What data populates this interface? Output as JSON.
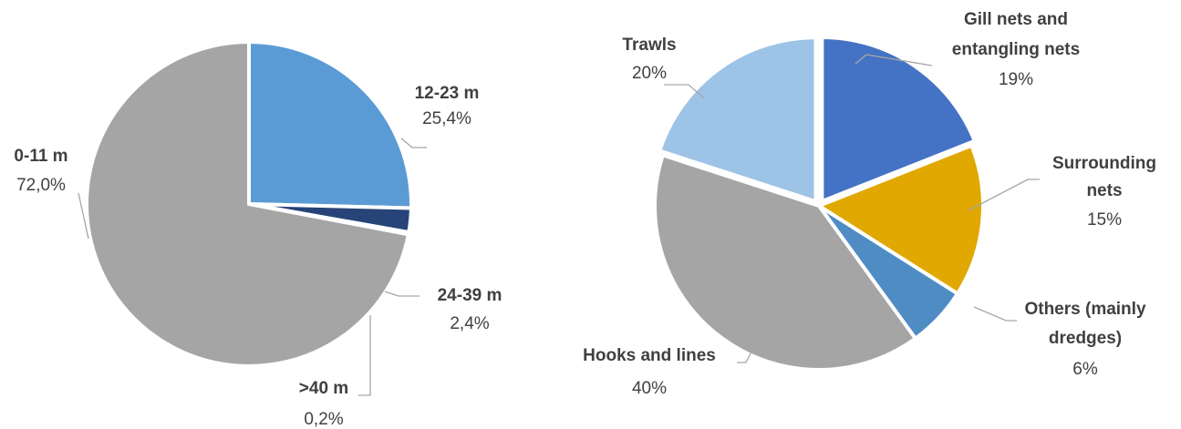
{
  "chart_data": [
    {
      "type": "pie",
      "title": "",
      "slices": [
        {
          "label": "12-23 m",
          "value_label": "25,4%",
          "value": 25.4,
          "color": "#5b9bd5"
        },
        {
          "label": "24-39 m",
          "value_label": "2,4%",
          "value": 2.4,
          "color": "#264478"
        },
        {
          "label": ">40 m",
          "value_label": "0,2%",
          "value": 0.2,
          "color": "#264478"
        },
        {
          "label": "0-11 m",
          "value_label": "72,0%",
          "value": 72.0,
          "color": "#a5a5a5"
        }
      ]
    },
    {
      "type": "pie",
      "title": "",
      "slices": [
        {
          "label": [
            "Gill nets and",
            "entangling nets"
          ],
          "value_label": "19%",
          "value": 19,
          "color": "#4472c4"
        },
        {
          "label": [
            "Surrounding",
            "nets"
          ],
          "value_label": "15%",
          "value": 15,
          "color": "#e0a800"
        },
        {
          "label": [
            "Others (mainly",
            "dredges)"
          ],
          "value_label": "6%",
          "value": 6,
          "color": "#4f8cc4"
        },
        {
          "label": [
            "Hooks and lines"
          ],
          "value_label": "40%",
          "value": 40,
          "color": "#a5a5a5"
        },
        {
          "label": [
            "Trawls"
          ],
          "value_label": "20%",
          "value": 20,
          "color": "#9dc3e6"
        }
      ]
    }
  ]
}
